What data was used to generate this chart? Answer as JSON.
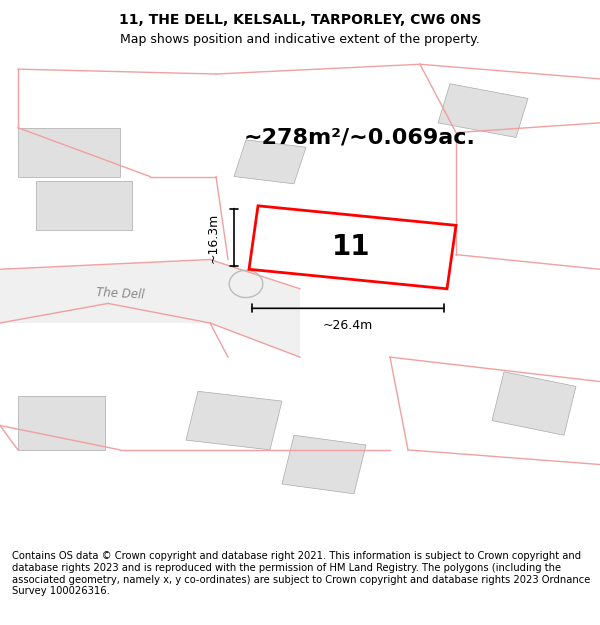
{
  "title": "11, THE DELL, KELSALL, TARPORLEY, CW6 0NS",
  "subtitle": "Map shows position and indicative extent of the property.",
  "area_text": "~278m²/~0.069ac.",
  "number_label": "11",
  "width_label": "~26.4m",
  "height_label": "~16.3m",
  "footer": "Contains OS data © Crown copyright and database right 2021. This information is subject to Crown copyright and database rights 2023 and is reproduced with the permission of HM Land Registry. The polygons (including the associated geometry, namely x, y co-ordinates) are subject to Crown copyright and database rights 2023 Ordnance Survey 100026316.",
  "bg_color": "#ffffff",
  "map_bg": "#ffffff",
  "plot_color": "#ff0000",
  "building_fill": "#e0e0e0",
  "pink_line_color": "#f0a0a0",
  "road_label_color": "#888888",
  "title_fontsize": 10,
  "subtitle_fontsize": 9,
  "area_fontsize": 16,
  "number_fontsize": 20,
  "measure_fontsize": 9,
  "footer_fontsize": 7.2
}
